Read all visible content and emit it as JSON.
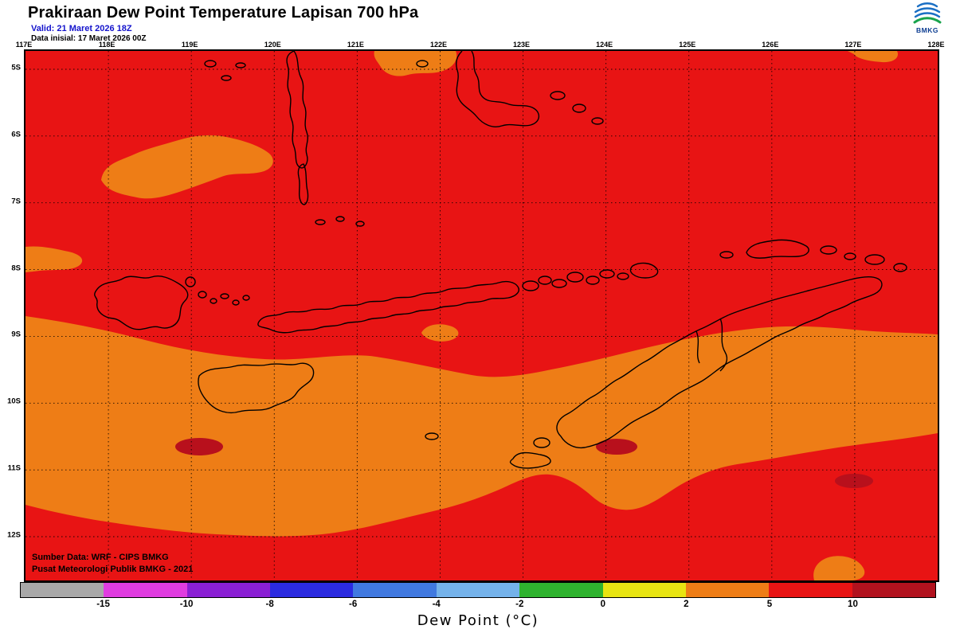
{
  "header": {
    "title": "Prakiraan Dew Point Temperature Lapisan 700 hPa",
    "valid_line": "Valid: 21 Maret 2026 18Z",
    "init_line": "Data inisial: 17 Maret 2026 00Z",
    "logo_text": "BMKG"
  },
  "map": {
    "lon_labels": [
      "117E",
      "118E",
      "119E",
      "120E",
      "121E",
      "122E",
      "123E",
      "124E",
      "125E",
      "126E",
      "127E",
      "128E"
    ],
    "lat_labels": [
      "5S",
      "6S",
      "7S",
      "8S",
      "9S",
      "10S",
      "11S",
      "12S"
    ],
    "credit_line1": "Sumber Data: WRF - CIPS BMKG",
    "credit_line2": "Pusat Meteorologi Publik BMKG - 2021"
  },
  "colorbar": {
    "title": "Dew Point (°C)",
    "tick_labels": [
      "-15",
      "-10",
      "-8",
      "-6",
      "-4",
      "-2",
      "0",
      "2",
      "5",
      "10"
    ],
    "segment_colors": [
      "#a8a8a8",
      "#e03ce0",
      "#8a1fd4",
      "#2b2be0",
      "#4079e0",
      "#74b2ea",
      "#2fb32f",
      "#e8e412",
      "#ee7d16",
      "#e81414",
      "#b1121e"
    ]
  },
  "colors": {
    "sea": "#e81414",
    "moist_band": "#ee7d16",
    "dark_spot": "#b8101c",
    "coastline": "#000000",
    "valid_text": "#1313cc",
    "logo_blue": "#1a6fc4",
    "logo_green": "#18a34c"
  }
}
